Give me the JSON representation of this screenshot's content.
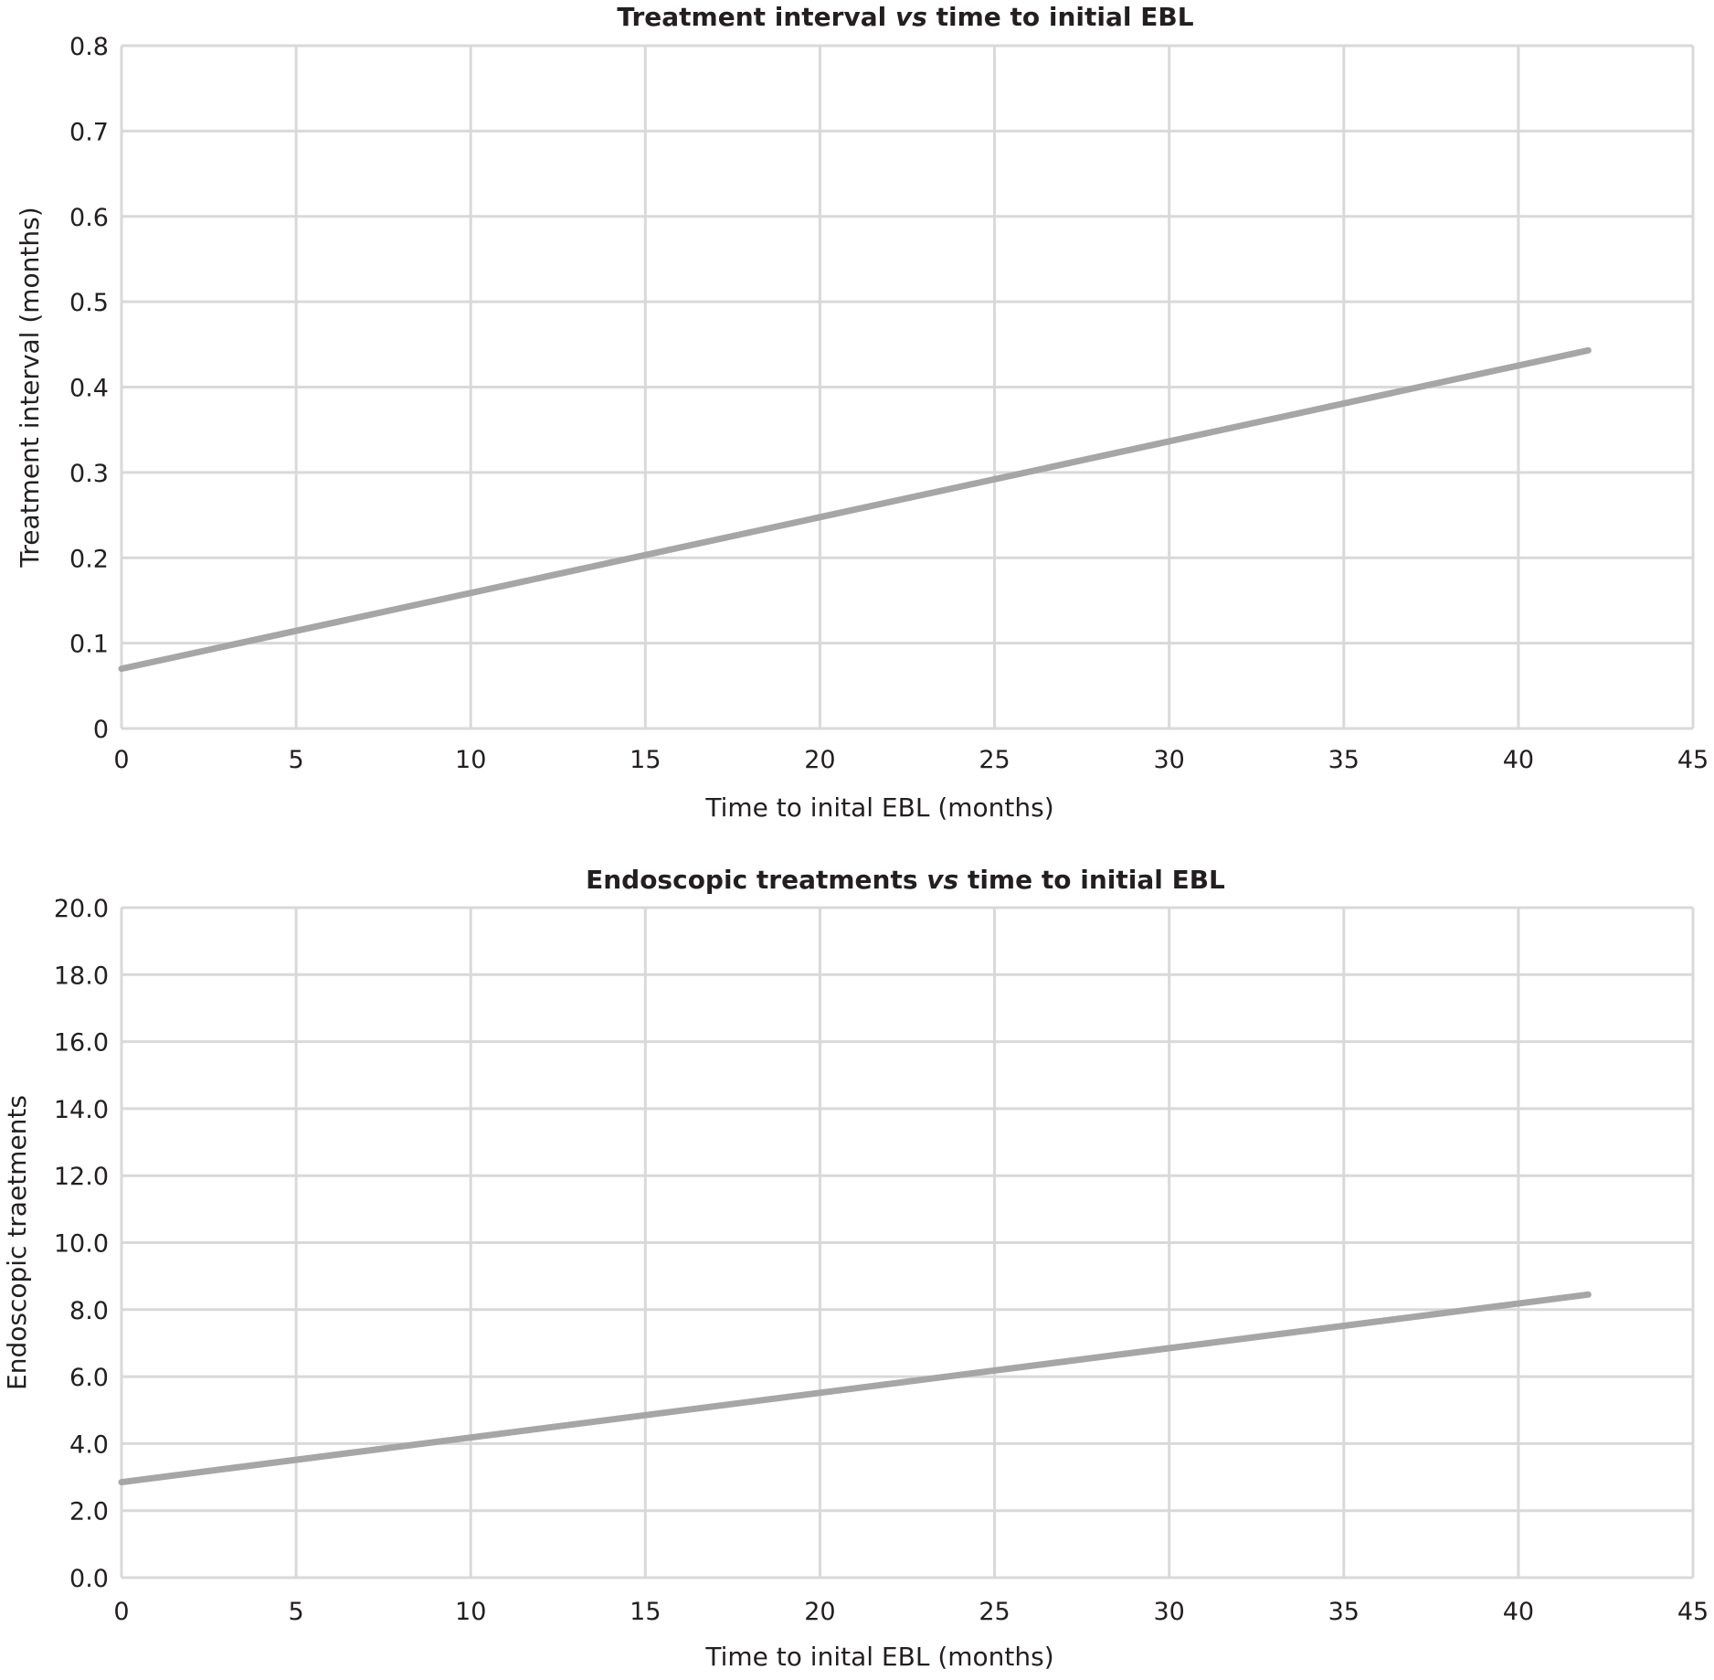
{
  "chart_data": [
    {
      "type": "line",
      "title": "Treatment interval vs time to initial EBL",
      "title_parts": [
        "Treatment interval ",
        "vs",
        " time to initial EBL"
      ],
      "xlabel": "Time to inital EBL (months)",
      "ylabel": "Treatment interval (months)",
      "xlim": [
        0,
        45
      ],
      "ylim": [
        0,
        0.8
      ],
      "xticks": [
        "0",
        "5",
        "10",
        "15",
        "20",
        "25",
        "30",
        "35",
        "40",
        "45"
      ],
      "yticks": [
        "0",
        "0.1",
        "0.2",
        "0.3",
        "0.4",
        "0.5",
        "0.6",
        "0.7",
        "0.8"
      ],
      "grid": true,
      "series": [
        {
          "x": [
            0,
            42
          ],
          "y": [
            0.07,
            0.443
          ],
          "color": "#a6a6a6"
        }
      ]
    },
    {
      "type": "line",
      "title": "Endoscopic treatments vs time to initial EBL",
      "title_parts": [
        "Endoscopic treatments ",
        "vs",
        " time to initial EBL"
      ],
      "xlabel": "Time to inital EBL (months)",
      "ylabel": "Endoscopic traetments",
      "xlim": [
        0,
        45
      ],
      "ylim": [
        0,
        20
      ],
      "xticks": [
        "0",
        "5",
        "10",
        "15",
        "20",
        "25",
        "30",
        "35",
        "40",
        "45"
      ],
      "yticks": [
        "0.0",
        "2.0",
        "4.0",
        "6.0",
        "8.0",
        "10.0",
        "12.0",
        "14.0",
        "16.0",
        "18.0",
        "20.0"
      ],
      "grid": true,
      "series": [
        {
          "x": [
            0,
            42
          ],
          "y": [
            2.85,
            8.45
          ],
          "color": "#a6a6a6"
        }
      ]
    }
  ]
}
